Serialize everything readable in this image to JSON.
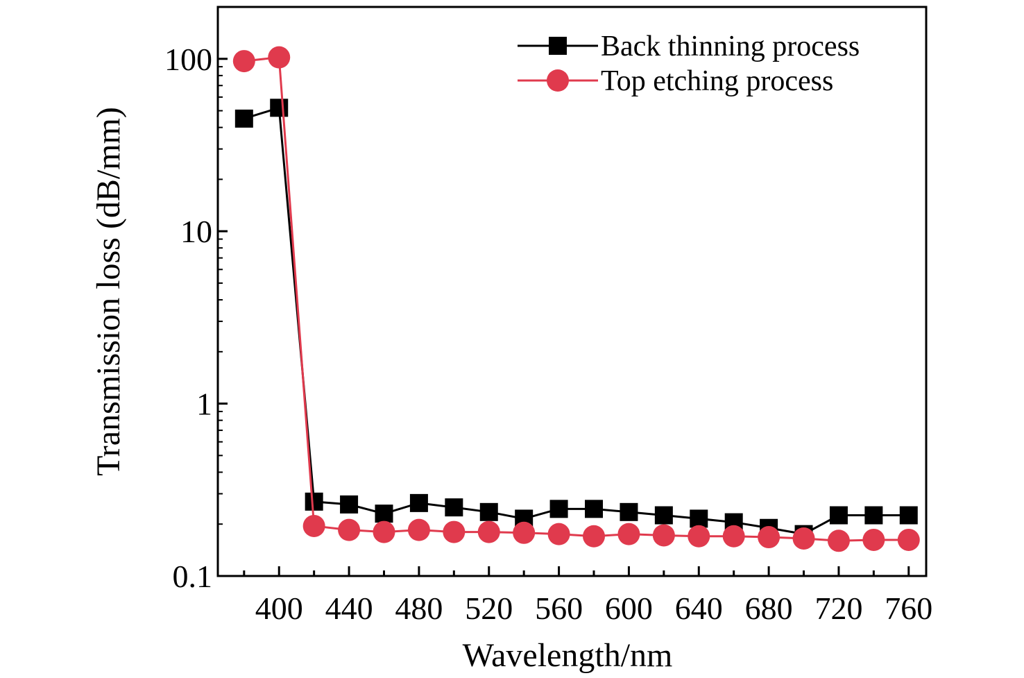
{
  "chart_data": {
    "type": "line",
    "title": "",
    "xlabel": "Wavelength/nm",
    "ylabel": "Transmission loss (dB/mm)",
    "xlim": [
      365,
      770
    ],
    "ylim": [
      0.1,
      200
    ],
    "yscale": "log",
    "xticks": [
      400,
      440,
      480,
      520,
      560,
      600,
      640,
      680,
      720,
      760
    ],
    "xticks_minor": [
      380,
      420,
      460,
      500,
      540,
      580,
      620,
      660,
      700,
      740
    ],
    "yticks": [
      0.1,
      1,
      10,
      100
    ],
    "ytick_labels": [
      "0.1",
      "1",
      "10",
      "100"
    ],
    "grid": false,
    "legend_position": "top-right",
    "series": [
      {
        "name": "Back thinning process",
        "color": "#000000",
        "marker": "square",
        "x": [
          380,
          400,
          420,
          440,
          460,
          480,
          500,
          520,
          540,
          560,
          580,
          600,
          620,
          640,
          660,
          680,
          700,
          720,
          740,
          760
        ],
        "y": [
          45,
          52,
          0.27,
          0.26,
          0.23,
          0.265,
          0.25,
          0.235,
          0.215,
          0.245,
          0.245,
          0.235,
          0.225,
          0.215,
          0.205,
          0.19,
          0.175,
          0.225,
          0.225,
          0.225
        ]
      },
      {
        "name": "Top etching process",
        "color": "#e03a4d",
        "marker": "circle",
        "x": [
          380,
          400,
          420,
          440,
          460,
          480,
          500,
          520,
          540,
          560,
          580,
          600,
          620,
          640,
          660,
          680,
          700,
          720,
          740,
          760
        ],
        "y": [
          97,
          102,
          0.195,
          0.185,
          0.18,
          0.185,
          0.18,
          0.18,
          0.178,
          0.175,
          0.17,
          0.175,
          0.172,
          0.17,
          0.17,
          0.168,
          0.165,
          0.16,
          0.162,
          0.162
        ]
      }
    ]
  }
}
